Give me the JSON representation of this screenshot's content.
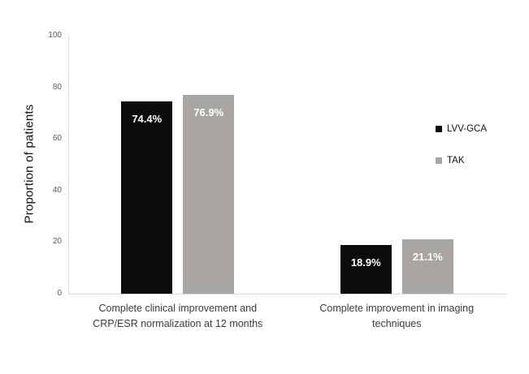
{
  "chart_data": {
    "type": "bar",
    "title": "",
    "ylabel": "Proportion of patients",
    "xlabel": "",
    "ylim": [
      0,
      100
    ],
    "yticks": [
      0,
      20,
      40,
      60,
      80,
      100
    ],
    "grid": false,
    "legend_position": "right",
    "categories": [
      "Complete clinical improvement and CRP/ESR normalization at 12 months",
      "Complete improvement in imaging techniques"
    ],
    "series": [
      {
        "name": "LVV-GCA",
        "color": "#0b0b0b",
        "values": [
          74.4,
          18.9
        ],
        "data_labels": [
          "74.4%",
          "18.9%"
        ]
      },
      {
        "name": "TAK",
        "color": "#a8a5a2",
        "values": [
          76.9,
          21.1
        ],
        "data_labels": [
          "76.9%",
          "21.1%"
        ]
      }
    ],
    "data_label_color": "#ffffff"
  },
  "colors": {
    "background": "#ffffff",
    "axis_line": "#d9d9d9",
    "tick_label": "#595959",
    "category_label": "#3b3b3b",
    "y_title": "#111111"
  }
}
